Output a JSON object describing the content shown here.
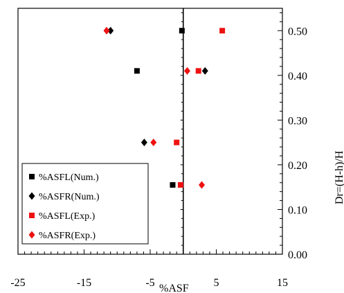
{
  "chart_data": {
    "type": "scatter",
    "xlabel": "%ASF",
    "ylabel": "Dr=(H-h)/H",
    "xlim": [
      -25,
      15
    ],
    "ylim": [
      0.0,
      0.55
    ],
    "x_ticks": [
      "-25",
      "-15",
      "-5",
      "5",
      "15"
    ],
    "x_tick_values": [
      -25,
      -15,
      -5,
      5,
      15
    ],
    "y_ticks": [
      "0.00",
      "0.10",
      "0.20",
      "0.30",
      "0.40",
      "0.50"
    ],
    "y_tick_values": [
      0.0,
      0.1,
      0.2,
      0.3,
      0.4,
      0.5
    ],
    "y_axis_side": "right",
    "vertical_reference_line_x": 0,
    "grid": false,
    "legend_position": "bottom-left",
    "series": [
      {
        "name": "%ASFL(Num.)",
        "marker": "square",
        "color": "#000000",
        "points": [
          {
            "x": -0.2,
            "y": 0.5
          },
          {
            "x": -7.0,
            "y": 0.41
          },
          {
            "x": -1.6,
            "y": 0.155
          }
        ]
      },
      {
        "name": "%ASFR(Num.)",
        "marker": "diamond",
        "color": "#000000",
        "points": [
          {
            "x": -11.0,
            "y": 0.5
          },
          {
            "x": 3.3,
            "y": 0.41
          },
          {
            "x": -5.9,
            "y": 0.25
          }
        ]
      },
      {
        "name": "%ASFL(Exp.)",
        "marker": "square",
        "color": "#ee1111",
        "points": [
          {
            "x": 5.9,
            "y": 0.5
          },
          {
            "x": 2.3,
            "y": 0.41
          },
          {
            "x": -1.0,
            "y": 0.25
          },
          {
            "x": -0.4,
            "y": 0.155
          }
        ]
      },
      {
        "name": "%ASFR(Exp.)",
        "marker": "diamond",
        "color": "#ee1111",
        "points": [
          {
            "x": -11.6,
            "y": 0.5
          },
          {
            "x": 0.6,
            "y": 0.41
          },
          {
            "x": -4.5,
            "y": 0.25
          },
          {
            "x": 2.8,
            "y": 0.155
          }
        ]
      }
    ]
  }
}
